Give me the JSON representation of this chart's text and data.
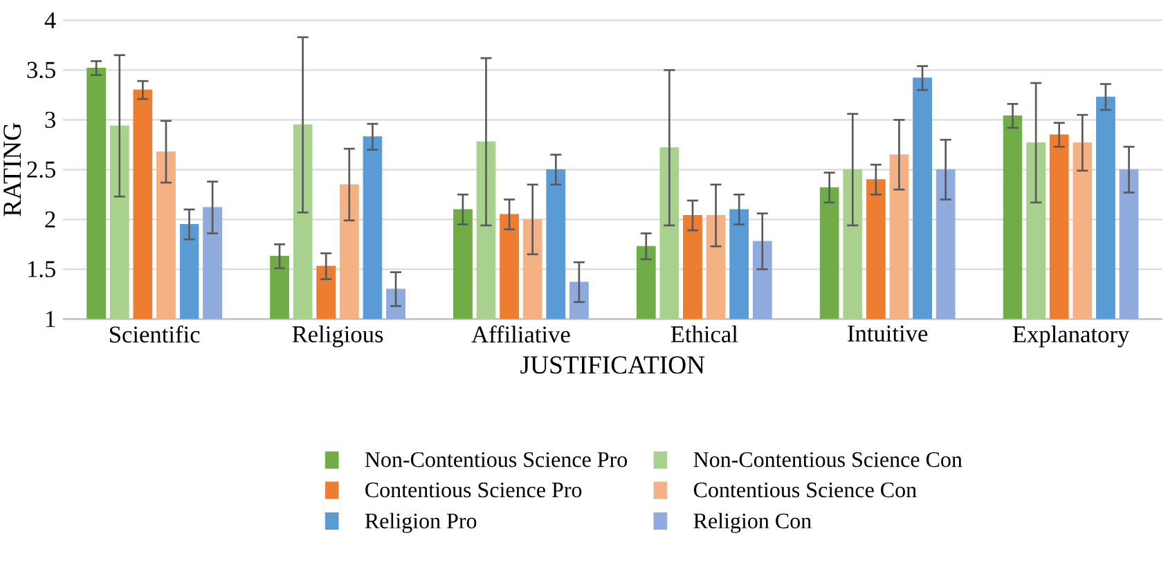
{
  "chart_data": {
    "type": "bar",
    "xlabel": "JUSTIFICATION",
    "ylabel": "RATING",
    "categories": [
      "Scientific",
      "Religious",
      "Affiliative",
      "Ethical",
      "Intuitive",
      "Explanatory"
    ],
    "series": [
      {
        "name": "Non-Contentious Science Pro",
        "color": "#70ad47",
        "values": [
          3.52,
          1.63,
          2.1,
          1.73,
          2.32,
          3.04
        ],
        "errors": [
          0.07,
          0.12,
          0.15,
          0.13,
          0.15,
          0.12
        ]
      },
      {
        "name": "Non-Contentious Science Con",
        "color": "#a9d18e",
        "values": [
          2.94,
          2.95,
          2.78,
          2.72,
          2.5,
          2.77
        ],
        "errors": [
          0.71,
          0.88,
          0.84,
          0.78,
          0.56,
          0.6
        ]
      },
      {
        "name": "Contentious Science Pro",
        "color": "#ed7d31",
        "values": [
          3.3,
          1.53,
          2.05,
          2.04,
          2.4,
          2.85
        ],
        "errors": [
          0.09,
          0.13,
          0.15,
          0.15,
          0.15,
          0.12
        ]
      },
      {
        "name": "Contentious Science Con",
        "color": "#f4b183",
        "values": [
          2.68,
          2.35,
          2.0,
          2.04,
          2.65,
          2.77
        ],
        "errors": [
          0.31,
          0.36,
          0.35,
          0.31,
          0.35,
          0.28
        ]
      },
      {
        "name": "Religion Pro",
        "color": "#5b9bd5",
        "values": [
          1.95,
          2.83,
          2.5,
          2.1,
          3.42,
          3.23
        ],
        "errors": [
          0.15,
          0.13,
          0.15,
          0.15,
          0.12,
          0.13
        ]
      },
      {
        "name": "Religion Con",
        "color": "#8faadc",
        "values": [
          2.12,
          1.3,
          1.37,
          1.78,
          2.5,
          2.5
        ],
        "errors": [
          0.26,
          0.17,
          0.2,
          0.28,
          0.3,
          0.23
        ]
      }
    ],
    "ylim": [
      1,
      4
    ],
    "yticks": [
      1,
      1.5,
      2,
      2.5,
      3,
      3.5,
      4
    ],
    "grid": "y",
    "legend": "bottom"
  }
}
